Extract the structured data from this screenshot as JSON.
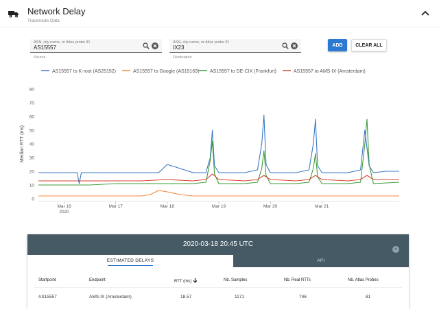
{
  "header": {
    "title": "Network Delay",
    "subtitle": "Traceroute Data",
    "icon": "truck-icon",
    "collapse_icon": "chevron-up-icon"
  },
  "source": {
    "placeholder": "ASN, city name, or Atlas probe ID",
    "value": "AS15557",
    "helper": "Source"
  },
  "destination": {
    "placeholder": "ASN, city name, or Atlas probe ID",
    "value": "IX23",
    "helper": "Destination"
  },
  "buttons": {
    "add": "ADD",
    "clear_all": "CLEAR ALL"
  },
  "colors": {
    "k_root": "#3a78c3",
    "google": "#f0883a",
    "decix": "#3e9c3a",
    "amsix": "#d6432f",
    "panel": "#455a64",
    "accent": "#2b79d3"
  },
  "chart_data": {
    "type": "line",
    "ylabel": "Median RTT (ms)",
    "ylim": [
      0,
      80
    ],
    "yticks": [
      0,
      10,
      20,
      30,
      40,
      50,
      60,
      70,
      80
    ],
    "xlim": [
      "2020-03-15 12:00",
      "2020-03-22 12:00"
    ],
    "xticks": [
      {
        "label": "Mar 16",
        "sub": "2020",
        "at": "2020-03-16"
      },
      {
        "label": "Mar 17",
        "sub": "",
        "at": "2020-03-17"
      },
      {
        "label": "Mar 18",
        "sub": "",
        "at": "2020-03-18"
      },
      {
        "label": "Mar 19",
        "sub": "",
        "at": "2020-03-19"
      },
      {
        "label": "Mar 20",
        "sub": "",
        "at": "2020-03-20"
      },
      {
        "label": "Mar 21",
        "sub": "",
        "at": "2020-03-21"
      }
    ],
    "legend_position": "top",
    "series": [
      {
        "name": "AS15557 to K-root (AS25152)",
        "color": "#3a78c3",
        "x": [
          "2020-03-15 12:00",
          "2020-03-15 18:00",
          "2020-03-16 00:00",
          "2020-03-16 06:00",
          "2020-03-16 07:00",
          "2020-03-16 08:00",
          "2020-03-16 12:00",
          "2020-03-16 18:00",
          "2020-03-17 00:00",
          "2020-03-17 12:00",
          "2020-03-17 20:00",
          "2020-03-18 00:00",
          "2020-03-18 12:00",
          "2020-03-18 18:00",
          "2020-03-18 20:00",
          "2020-03-18 21:00",
          "2020-03-18 22:00",
          "2020-03-19 00:00",
          "2020-03-19 06:00",
          "2020-03-19 12:00",
          "2020-03-19 18:00",
          "2020-03-19 20:00",
          "2020-03-19 21:00",
          "2020-03-19 22:00",
          "2020-03-20 00:00",
          "2020-03-20 12:00",
          "2020-03-20 18:00",
          "2020-03-20 20:00",
          "2020-03-20 21:00",
          "2020-03-20 22:00",
          "2020-03-21 00:00",
          "2020-03-21 12:00",
          "2020-03-21 18:00",
          "2020-03-21 20:00",
          "2020-03-21 21:00",
          "2020-03-21 22:00",
          "2020-03-22 00:00",
          "2020-03-22 06:00",
          "2020-03-22 12:00"
        ],
        "y": [
          19,
          19,
          19,
          19,
          11,
          19,
          19,
          19,
          19,
          19,
          19,
          25,
          19,
          19,
          30,
          50,
          24,
          19,
          19,
          19,
          21,
          40,
          61,
          25,
          19,
          19,
          21,
          40,
          58,
          24,
          19,
          19,
          21,
          50,
          37,
          24,
          19,
          20,
          20
        ]
      },
      {
        "name": "AS15557 to Google (AS15169)",
        "color": "#f0883a",
        "x": [
          "2020-03-15 12:00",
          "2020-03-16 00:00",
          "2020-03-16 12:00",
          "2020-03-17 00:00",
          "2020-03-17 12:00",
          "2020-03-17 16:00",
          "2020-03-17 20:00",
          "2020-03-18 00:00",
          "2020-03-18 06:00",
          "2020-03-18 12:00",
          "2020-03-19 00:00",
          "2020-03-19 12:00",
          "2020-03-20 00:00",
          "2020-03-20 12:00",
          "2020-03-21 00:00",
          "2020-03-21 12:00",
          "2020-03-22 00:00",
          "2020-03-22 12:00"
        ],
        "y": [
          2,
          2,
          2,
          2,
          2,
          3,
          6,
          5,
          3,
          2,
          2,
          2,
          2,
          2,
          2,
          2,
          2,
          2
        ]
      },
      {
        "name": "AS15557 to DE-CIX (Frankfurt)",
        "color": "#3e9c3a",
        "x": [
          "2020-03-15 12:00",
          "2020-03-16 00:00",
          "2020-03-16 12:00",
          "2020-03-17 00:00",
          "2020-03-17 12:00",
          "2020-03-18 00:00",
          "2020-03-18 12:00",
          "2020-03-18 18:00",
          "2020-03-18 20:00",
          "2020-03-18 21:00",
          "2020-03-18 22:00",
          "2020-03-19 00:00",
          "2020-03-19 12:00",
          "2020-03-19 18:00",
          "2020-03-19 20:00",
          "2020-03-19 21:00",
          "2020-03-19 22:00",
          "2020-03-20 00:00",
          "2020-03-20 12:00",
          "2020-03-20 18:00",
          "2020-03-20 20:00",
          "2020-03-20 21:00",
          "2020-03-20 22:00",
          "2020-03-21 00:00",
          "2020-03-21 12:00",
          "2020-03-21 18:00",
          "2020-03-21 20:00",
          "2020-03-21 21:00",
          "2020-03-21 22:00",
          "2020-03-22 00:00",
          "2020-03-22 12:00"
        ],
        "y": [
          10,
          10,
          10,
          11,
          11,
          11,
          11,
          12,
          28,
          42,
          18,
          11,
          11,
          12,
          22,
          35,
          17,
          11,
          11,
          12,
          22,
          33,
          16,
          11,
          11,
          12,
          40,
          58,
          25,
          11,
          12
        ]
      },
      {
        "name": "AS15557 to AMS-IX (Amsterdam)",
        "color": "#d6432f",
        "x": [
          "2020-03-15 12:00",
          "2020-03-16 00:00",
          "2020-03-16 12:00",
          "2020-03-17 00:00",
          "2020-03-17 12:00",
          "2020-03-18 00:00",
          "2020-03-18 12:00",
          "2020-03-18 18:00",
          "2020-03-18 21:00",
          "2020-03-19 00:00",
          "2020-03-19 12:00",
          "2020-03-19 18:00",
          "2020-03-19 21:00",
          "2020-03-20 00:00",
          "2020-03-20 12:00",
          "2020-03-20 18:00",
          "2020-03-20 21:00",
          "2020-03-21 00:00",
          "2020-03-21 12:00",
          "2020-03-21 18:00",
          "2020-03-21 21:00",
          "2020-03-22 00:00",
          "2020-03-22 12:00"
        ],
        "y": [
          13,
          13,
          13,
          13,
          13,
          14,
          13,
          14,
          18,
          14,
          13,
          14,
          17,
          14,
          13,
          14,
          17,
          14,
          13,
          14,
          17,
          14,
          14
        ]
      }
    ]
  },
  "panel": {
    "title": "2020-03-18 20:45 UTC",
    "tabs": [
      "ESTIMATED DELAYS",
      "API"
    ],
    "columns": [
      "Startpoint",
      "Endpoint",
      "RTT (ms)",
      "Nb. Samples",
      "Nb. Real RTTs",
      "Nb. Atlas Probes"
    ],
    "sort_icon": "arrow-down-icon",
    "rows": [
      [
        "AS15557",
        "AMS-IX (Amsterdam)",
        "18.57",
        "1171",
        "746",
        "81"
      ]
    ]
  }
}
